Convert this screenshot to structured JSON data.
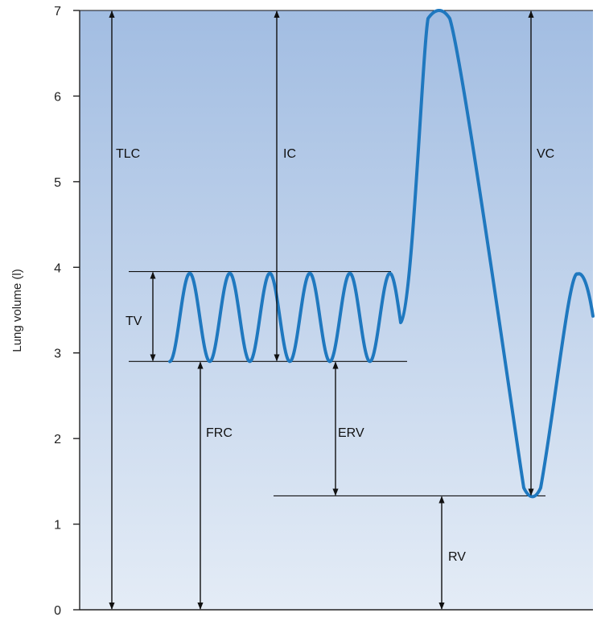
{
  "chart_data": {
    "type": "line",
    "title": "",
    "xlabel": "",
    "ylabel": "Lung volume (l)",
    "ylim": [
      0,
      7
    ],
    "yticks": [
      0,
      1,
      2,
      3,
      4,
      5,
      6,
      7
    ],
    "grid": false,
    "colors": {
      "background_top": "#a2bde2",
      "background_bottom": "#e4ecf6",
      "trace": "#1f78bf",
      "annotation": "#111111"
    },
    "series": [
      {
        "tidal_min": 2.9,
        "tidal_max": 3.93,
        "tidal_cycles": 6,
        "max_inspiration": 7.0,
        "max_expiration": 1.33
      }
    ],
    "reference_lines": [
      {
        "label": "tidal-top",
        "y": 3.95
      },
      {
        "label": "tidal-bottom",
        "y": 2.9
      },
      {
        "label": "residual",
        "y": 1.33
      },
      {
        "label": "total",
        "y": 7.0
      }
    ],
    "annotations": [
      {
        "label": "TLC",
        "from": 0,
        "to": 7.0
      },
      {
        "label": "IC",
        "from": 2.9,
        "to": 7.0
      },
      {
        "label": "VC",
        "from": 1.33,
        "to": 7.0
      },
      {
        "label": "TV",
        "from": 2.9,
        "to": 3.95
      },
      {
        "label": "FRC",
        "from": 0,
        "to": 2.9
      },
      {
        "label": "ERV",
        "from": 1.33,
        "to": 2.9
      },
      {
        "label": "RV",
        "from": 0,
        "to": 1.33
      }
    ]
  }
}
